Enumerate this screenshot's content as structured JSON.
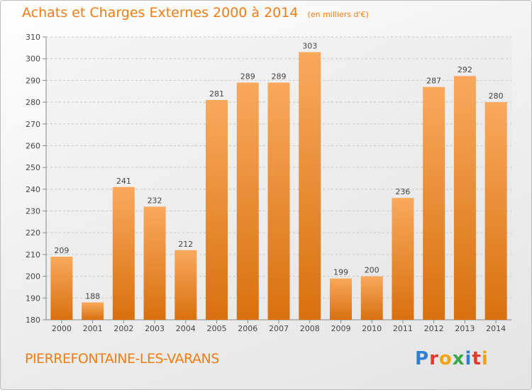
{
  "header": {
    "title": "Achats et Charges Externes 2000 à 2014",
    "subtitle": "(en milliers d'€)"
  },
  "location": "PIERREFONTAINE-LES-VARANS",
  "logo": {
    "text": "Proxiti",
    "letters": [
      {
        "ch": "P",
        "color": "#2e7fd6"
      },
      {
        "ch": "r",
        "color": "#e13a2e"
      },
      {
        "ch": "o",
        "color": "#f2a20f"
      },
      {
        "ch": "x",
        "color": "#3aa84a"
      },
      {
        "ch": "i",
        "color": "#2e7fd6"
      },
      {
        "ch": "t",
        "color": "#e13a2e"
      },
      {
        "ch": "i",
        "color": "#f2a20f"
      }
    ]
  },
  "colors": {
    "accent": "#f07d12",
    "bar_light": "#f8a95c",
    "bar_dark": "#d9700f",
    "grid": "#c8c8c8"
  },
  "chart_data": {
    "type": "bar",
    "title": "Achats et Charges Externes 2000 à 2014",
    "categories": [
      "2000",
      "2001",
      "2002",
      "2003",
      "2004",
      "2005",
      "2006",
      "2007",
      "2008",
      "2009",
      "2010",
      "2011",
      "2012",
      "2013",
      "2014"
    ],
    "values": [
      209,
      188,
      241,
      232,
      212,
      281,
      289,
      289,
      303,
      199,
      200,
      236,
      287,
      292,
      280
    ],
    "ylim": [
      180,
      310
    ],
    "yticks": [
      180,
      190,
      200,
      210,
      220,
      230,
      240,
      250,
      260,
      270,
      280,
      290,
      300,
      310
    ],
    "grid": "horizontal dashed",
    "legend": "none"
  }
}
